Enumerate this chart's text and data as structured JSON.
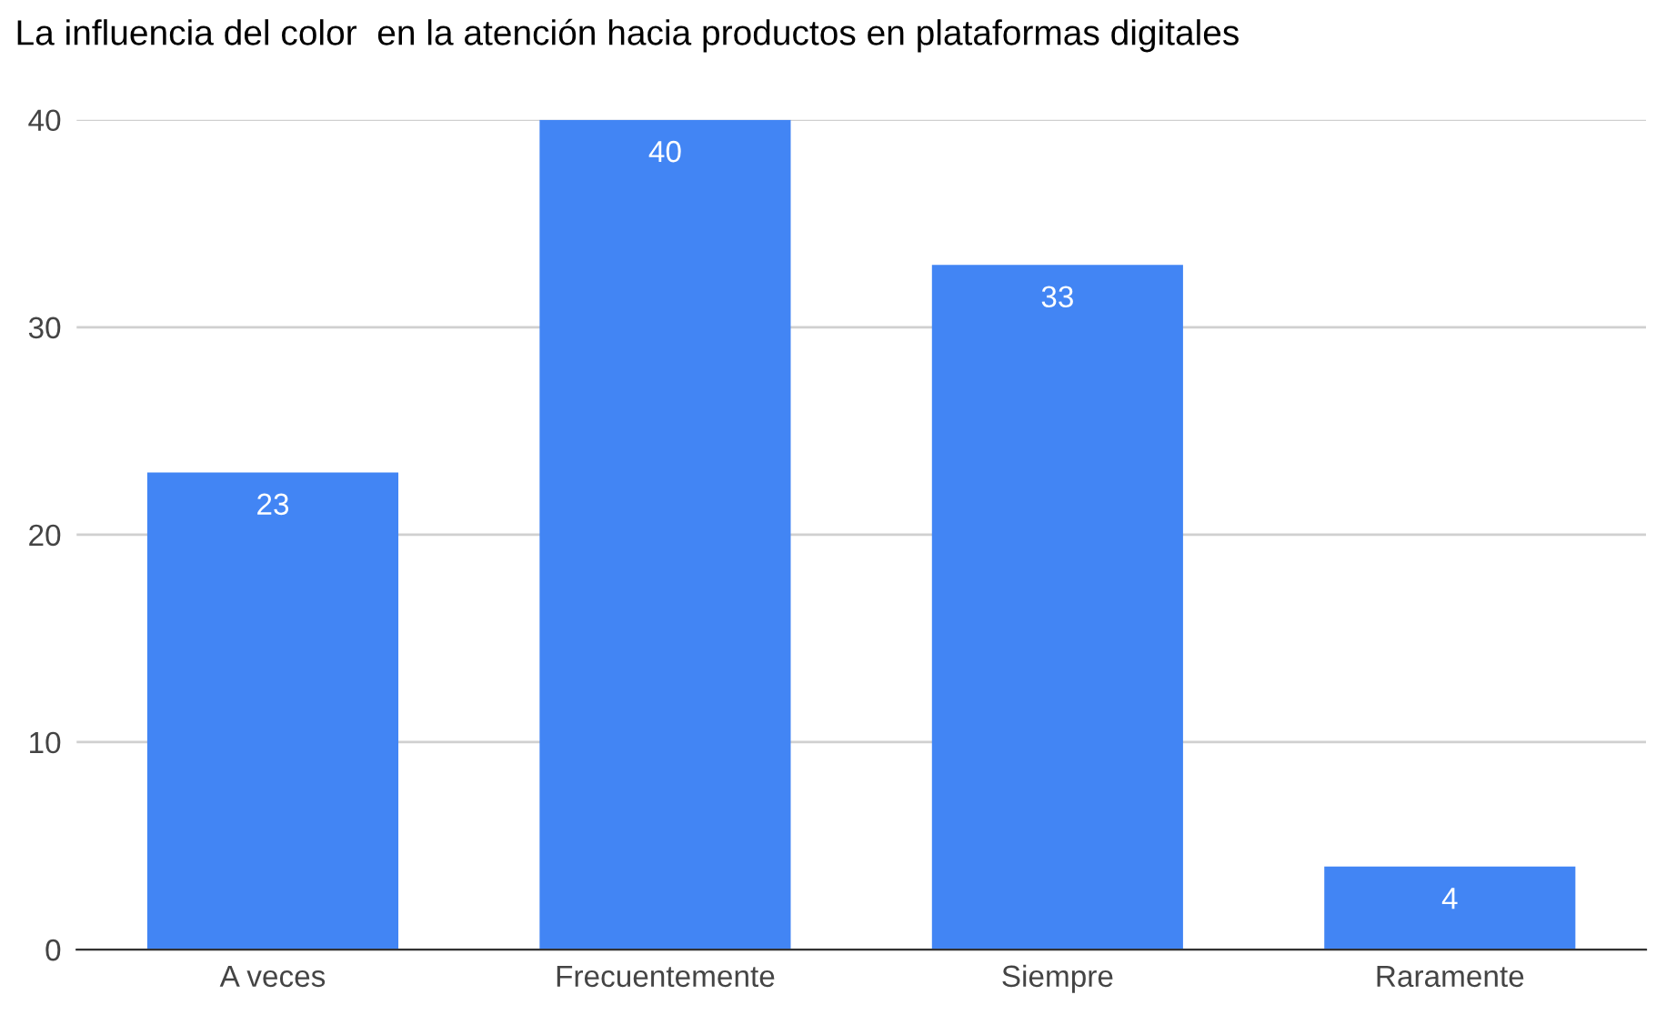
{
  "chart_data": {
    "type": "bar",
    "title": "La influencia del color  en la atención hacia productos en plataformas digitales",
    "categories": [
      "A veces",
      "Frecuentemente",
      "Siempre",
      "Raramente"
    ],
    "values": [
      23,
      40,
      33,
      4
    ],
    "color": "#4285f4",
    "ylim": [
      0,
      40
    ],
    "yticks": [
      0,
      10,
      20,
      30,
      40
    ],
    "grid": "y",
    "data_labels": true
  }
}
